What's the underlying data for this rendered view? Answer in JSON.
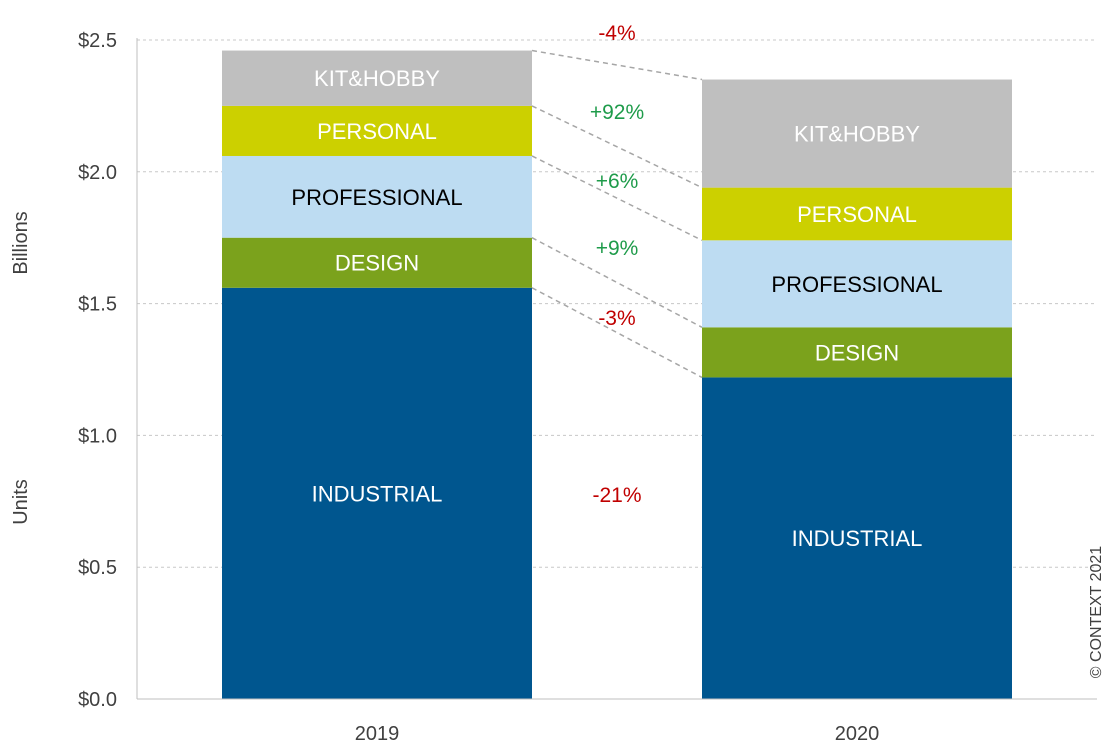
{
  "chart_data": {
    "type": "bar",
    "stacked": true,
    "categories": [
      "2019",
      "2020"
    ],
    "series": [
      {
        "name": "INDUSTRIAL",
        "values": [
          1.56,
          1.22
        ],
        "color": "#00568F",
        "label_color": "#FFFFFF"
      },
      {
        "name": "DESIGN",
        "values": [
          0.19,
          0.19
        ],
        "color": "#7BA21C",
        "label_color": "#FFFFFF"
      },
      {
        "name": "PROFESSIONAL",
        "values": [
          0.31,
          0.33
        ],
        "color": "#BDDCF2",
        "label_color": "#000000"
      },
      {
        "name": "PERSONAL",
        "values": [
          0.19,
          0.2
        ],
        "color": "#CCD000",
        "label_color": "#FFFFFF"
      },
      {
        "name": "KIT&HOBBY",
        "values": [
          0.21,
          0.41
        ],
        "color": "#BFBFBF",
        "label_color": "#FFFFFF"
      }
    ],
    "changes": [
      {
        "series": "INDUSTRIAL",
        "label": "-21%",
        "color": "#C00000"
      },
      {
        "series": "DESIGN",
        "label": "-3%",
        "color": "#C00000"
      },
      {
        "series": "PROFESSIONAL",
        "label": "+9%",
        "color": "#1E9B4A"
      },
      {
        "series": "PERSONAL",
        "label": "+6%",
        "color": "#1E9B4A"
      },
      {
        "series": "KIT&HOBBY",
        "label": "+92%",
        "color": "#1E9B4A"
      }
    ],
    "total_change": {
      "label": "-4%",
      "color": "#C00000"
    },
    "ylim": [
      0,
      2.5
    ],
    "yticks": [
      {
        "value": 0.0,
        "label": "$0.0"
      },
      {
        "value": 0.5,
        "label": "$0.5"
      },
      {
        "value": 1.0,
        "label": "$1.0"
      },
      {
        "value": 1.5,
        "label": "$1.5"
      },
      {
        "value": 2.0,
        "label": "$2.0"
      },
      {
        "value": 2.5,
        "label": "$2.5"
      }
    ],
    "ylabel_parts": [
      "Units",
      "Billions"
    ],
    "grid": true,
    "copyright": "© CONTEXT 2021"
  }
}
